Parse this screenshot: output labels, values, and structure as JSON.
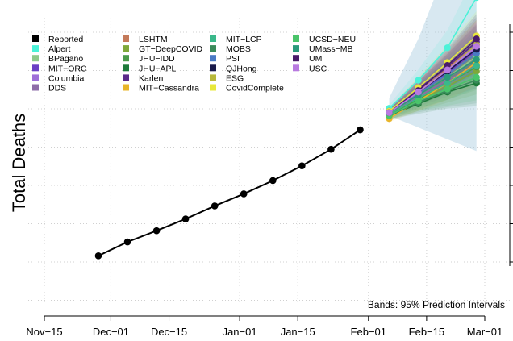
{
  "chart_data": {
    "type": "line",
    "title": "",
    "xlabel": "",
    "ylabel": "Total Deaths",
    "annotation": "Bands: 95% Prediction Intervals",
    "grid": true,
    "legend_position": "top-left",
    "x_ticks": [
      "Nov−15",
      "Dec−01",
      "Dec−15",
      "Jan−01",
      "Jan−15",
      "Feb−01",
      "Feb−15",
      "Mar−01"
    ],
    "xlim": [
      "2020-11-15",
      "2021-03-01"
    ],
    "ylim": [
      0,
      1
    ],
    "y_ticks_visible": false,
    "reported": {
      "name": "Reported",
      "color": "#000000",
      "x": [
        "2020-11-28",
        "2020-12-05",
        "2020-12-12",
        "2020-12-19",
        "2020-12-26",
        "2021-01-02",
        "2021-01-09",
        "2021-01-16",
        "2021-01-23",
        "2021-01-30"
      ],
      "y": [
        0.215,
        0.262,
        0.3,
        0.34,
        0.384,
        0.425,
        0.47,
        0.52,
        0.576,
        0.642
      ]
    },
    "forecast_dates": [
      "2021-02-06",
      "2021-02-13",
      "2021-02-20",
      "2021-02-27"
    ],
    "series": [
      {
        "name": "Alpert",
        "color": "#4bf2d8",
        "values": [
          0.715,
          0.81,
          0.92,
          1.09
        ]
      },
      {
        "name": "BPagano",
        "color": "#8fc98b",
        "values": [
          0.7,
          0.76,
          0.82,
          0.89
        ]
      },
      {
        "name": "MIT−ORC",
        "color": "#6a3fc4",
        "values": [
          0.7,
          0.765,
          0.835,
          0.91
        ]
      },
      {
        "name": "Columbia",
        "color": "#9e6ed8",
        "values": [
          0.705,
          0.77,
          0.84,
          0.92
        ]
      },
      {
        "name": "DDS",
        "color": "#8e6ca8",
        "values": [
          0.7,
          0.755,
          0.81,
          0.86
        ]
      },
      {
        "name": "LSHTM",
        "color": "#c47a5a",
        "values": [
          0.7,
          0.77,
          0.85,
          0.93
        ]
      },
      {
        "name": "GT−DeepCOVID",
        "color": "#7fa83a",
        "values": [
          0.69,
          0.74,
          0.79,
          0.84
        ]
      },
      {
        "name": "JHU−IDD",
        "color": "#4a9a4a",
        "values": [
          0.695,
          0.745,
          0.8,
          0.855
        ]
      },
      {
        "name": "JHU−APL",
        "color": "#1e7a3a",
        "values": [
          0.69,
          0.73,
          0.77,
          0.8
        ]
      },
      {
        "name": "Karlen",
        "color": "#5a2a8a",
        "values": [
          0.705,
          0.78,
          0.855,
          0.94
        ]
      },
      {
        "name": "MIT−Cassandra",
        "color": "#e8b52a",
        "values": [
          0.68,
          0.74,
          0.8,
          0.87
        ]
      },
      {
        "name": "MIT−LCP",
        "color": "#3ab88a",
        "values": [
          0.695,
          0.75,
          0.8,
          0.86
        ]
      },
      {
        "name": "MOBS",
        "color": "#3a8a5a",
        "values": [
          0.69,
          0.735,
          0.775,
          0.81
        ]
      },
      {
        "name": "PSI",
        "color": "#4a7ac4",
        "values": [
          0.7,
          0.765,
          0.83,
          0.9
        ]
      },
      {
        "name": "QJHong",
        "color": "#1a1a4a",
        "values": [
          0.7,
          0.77,
          0.84,
          0.915
        ]
      },
      {
        "name": "ESG",
        "color": "#b8b83a",
        "values": [
          0.7,
          0.77,
          0.845,
          0.93
        ]
      },
      {
        "name": "CovidComplete",
        "color": "#e8e83a",
        "values": [
          0.705,
          0.785,
          0.87,
          0.96
        ]
      },
      {
        "name": "UCSD−NEU",
        "color": "#4ac46a",
        "values": [
          0.69,
          0.74,
          0.78,
          0.82
        ]
      },
      {
        "name": "UMass−MB",
        "color": "#2a9a7a",
        "values": [
          0.7,
          0.76,
          0.82,
          0.88
        ]
      },
      {
        "name": "UM",
        "color": "#4a1a6a",
        "values": [
          0.7,
          0.775,
          0.86,
          0.95
        ]
      },
      {
        "name": "USC",
        "color": "#b87ae0",
        "values": [
          0.7,
          0.77,
          0.845,
          0.925
        ]
      }
    ],
    "legend_order": [
      [
        "Reported",
        "Alpert",
        "BPagano",
        "MIT−ORC",
        "Columbia",
        "DDS"
      ],
      [
        "LSHTM",
        "GT−DeepCOVID",
        "JHU−IDD",
        "JHU−APL",
        "Karlen",
        "MIT−Cassandra"
      ],
      [
        "MIT−LCP",
        "MOBS",
        "PSI",
        "QJHong",
        "ESG",
        "CovidComplete"
      ],
      [
        "UCSD−NEU",
        "UMass−MB",
        "UM",
        "USC"
      ]
    ]
  }
}
